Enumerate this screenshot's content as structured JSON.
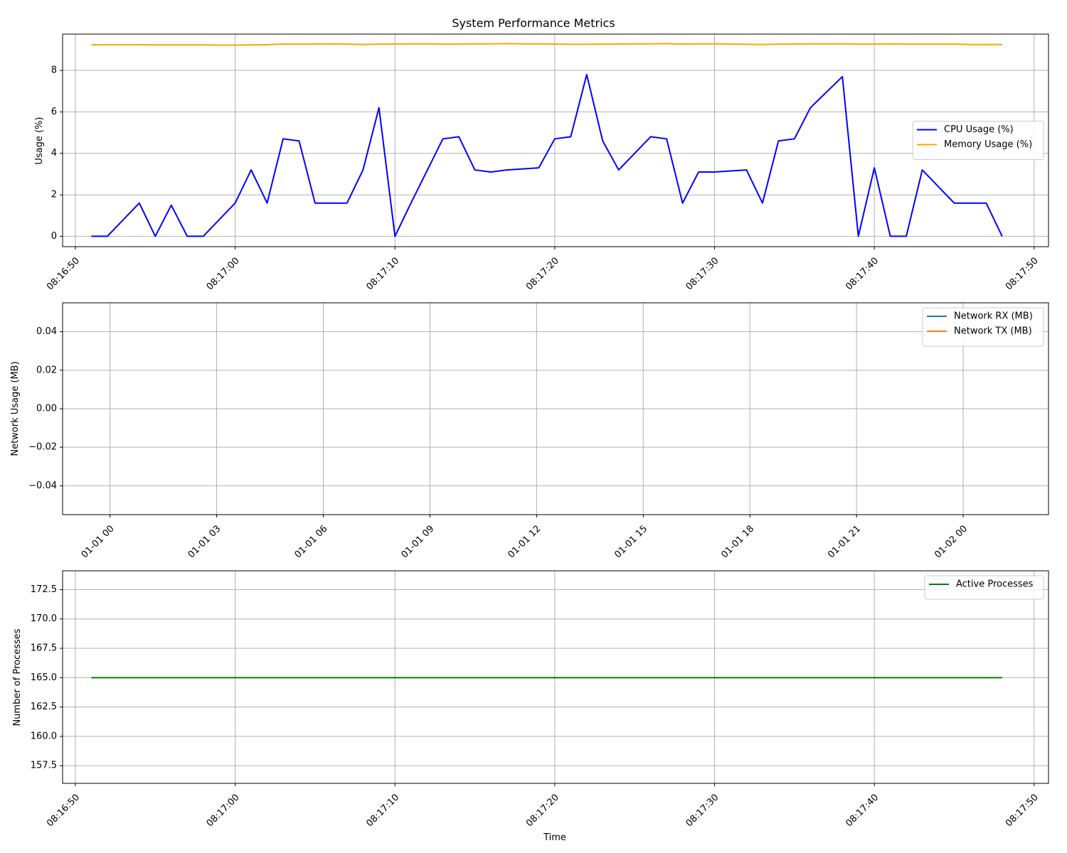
{
  "colors": {
    "cpu": "#0000ff",
    "memory": "#ffa500",
    "network_rx": "#1f77b4",
    "network_tx": "#ff7f0e",
    "processes": "#008000",
    "grid": "#b0b0b0"
  },
  "chart_data": [
    {
      "type": "line",
      "title": "System Performance Metrics",
      "xlabel": "",
      "ylabel": "Usage (%)",
      "x_unit": "time (HH:MM:SS)",
      "x_start": "08:16:51",
      "x_step_seconds": 1,
      "xlim": [
        "08:16:49.2",
        "08:17:50.9"
      ],
      "ylim": [
        -0.5,
        9.75
      ],
      "x_ticks": [
        "08:16:50",
        "08:17:00",
        "08:17:10",
        "08:17:20",
        "08:17:30",
        "08:17:40",
        "08:17:50"
      ],
      "y_ticks": [
        "0",
        "2",
        "4",
        "6",
        "8"
      ],
      "grid": true,
      "legend_position": "center-right",
      "series": [
        {
          "name": "CPU Usage (%)",
          "color_key": "cpu",
          "values": [
            0,
            0,
            0.8,
            1.6,
            0,
            1.5,
            0,
            0,
            0.8,
            1.6,
            3.2,
            1.6,
            4.7,
            4.6,
            1.6,
            1.6,
            1.6,
            3.2,
            6.2,
            0,
            1.6,
            3.15,
            4.7,
            4.8,
            3.2,
            3.1,
            3.2,
            3.25,
            3.3,
            4.7,
            4.8,
            7.8,
            4.6,
            3.2,
            4.0,
            4.8,
            4.7,
            1.6,
            3.1,
            3.1,
            3.15,
            3.2,
            1.6,
            4.6,
            4.7,
            6.2,
            6.95,
            7.7,
            0,
            3.3,
            0,
            0,
            3.2,
            2.4,
            1.6,
            1.6,
            1.6,
            0
          ]
        },
        {
          "name": "Memory Usage (%)",
          "color_key": "memory",
          "values": [
            9.23,
            9.24,
            9.24,
            9.24,
            9.23,
            9.23,
            9.23,
            9.23,
            9.22,
            9.22,
            9.23,
            9.24,
            9.27,
            9.27,
            9.27,
            9.28,
            9.27,
            9.25,
            9.27,
            9.27,
            9.28,
            9.28,
            9.27,
            9.27,
            9.28,
            9.28,
            9.29,
            9.28,
            9.28,
            9.27,
            9.26,
            9.26,
            9.27,
            9.27,
            9.28,
            9.28,
            9.29,
            9.27,
            9.28,
            9.28,
            9.27,
            9.26,
            9.25,
            9.27,
            9.27,
            9.28,
            9.28,
            9.28,
            9.27,
            9.27,
            9.28,
            9.27,
            9.27,
            9.27,
            9.27,
            9.25,
            9.25,
            9.25
          ]
        }
      ]
    },
    {
      "type": "line",
      "title": "",
      "xlabel": "",
      "ylabel": "Network Usage (MB)",
      "xlim": [
        "12-31 22:40",
        "01-02 02:24"
      ],
      "ylim": [
        -0.055,
        0.055
      ],
      "x_ticks": [
        "01-01 00",
        "01-01 03",
        "01-01 06",
        "01-01 09",
        "01-01 12",
        "01-01 15",
        "01-01 18",
        "01-01 21",
        "01-02 00"
      ],
      "y_ticks": [
        "−0.04",
        "−0.02",
        "0.00",
        "0.02",
        "0.04"
      ],
      "grid": true,
      "legend_position": "top-right",
      "series": [
        {
          "name": "Network RX (MB)",
          "color_key": "network_rx",
          "values": []
        },
        {
          "name": "Network TX (MB)",
          "color_key": "network_tx",
          "values": []
        }
      ]
    },
    {
      "type": "line",
      "title": "",
      "xlabel": "Time",
      "ylabel": "Number of Processes",
      "x_unit": "time (HH:MM:SS)",
      "x_start": "08:16:51",
      "x_step_seconds": 1,
      "xlim": [
        "08:16:49.2",
        "08:17:50.9"
      ],
      "ylim": [
        156,
        174.1
      ],
      "x_ticks": [
        "08:16:50",
        "08:17:00",
        "08:17:10",
        "08:17:20",
        "08:17:30",
        "08:17:40",
        "08:17:50"
      ],
      "y_ticks": [
        "157.5",
        "160.0",
        "162.5",
        "165.0",
        "167.5",
        "170.0",
        "172.5"
      ],
      "grid": true,
      "legend_position": "top-right",
      "series": [
        {
          "name": "Active Processes",
          "color_key": "processes",
          "values": [
            165,
            165,
            165,
            165,
            165,
            165,
            165,
            165,
            165,
            165,
            165,
            165,
            165,
            165,
            165,
            165,
            165,
            165,
            165,
            165,
            165,
            165,
            165,
            165,
            165,
            165,
            165,
            165,
            165,
            165,
            165,
            165,
            165,
            165,
            165,
            165,
            165,
            165,
            165,
            165,
            165,
            165,
            165,
            165,
            165,
            165,
            165,
            165,
            165,
            165,
            165,
            165,
            165,
            165,
            165,
            165,
            165,
            165
          ]
        }
      ]
    }
  ]
}
